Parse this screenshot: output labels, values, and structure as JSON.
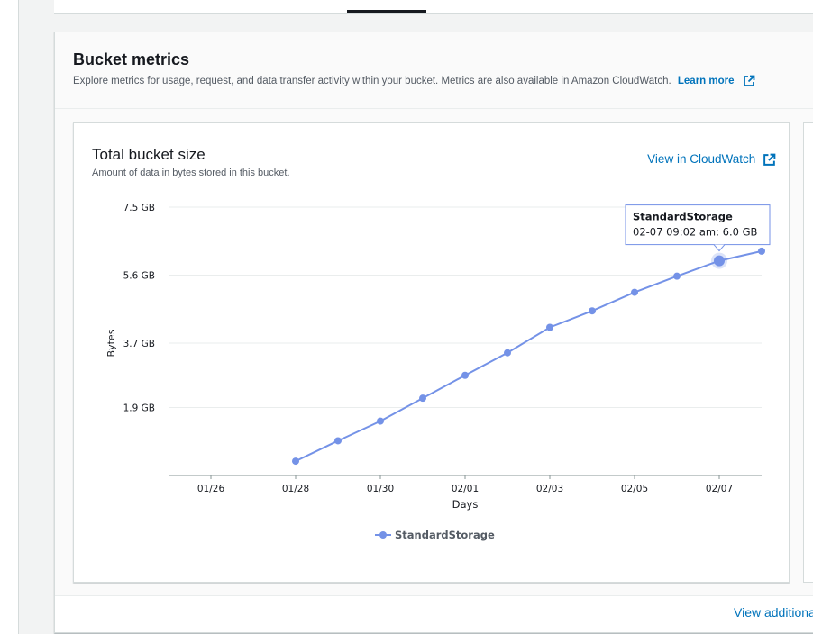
{
  "panel": {
    "title": "Bucket metrics",
    "description": "Explore metrics for usage, request, and data transfer activity within your bucket. Metrics are also available in Amazon CloudWatch.",
    "learn_more": "Learn more"
  },
  "card": {
    "title": "Total bucket size",
    "subtitle": "Amount of data in bytes stored in this bucket.",
    "cloudwatch_link": "View in CloudWatch"
  },
  "footer": {
    "view_additional": "View additional"
  },
  "colors": {
    "accent": "#0073bb",
    "series": "#7492e7"
  },
  "chart_data": {
    "type": "line",
    "title": "Total bucket size",
    "xlabel": "Days",
    "ylabel": "Bytes",
    "x_ticks": [
      "01/26",
      "01/28",
      "01/30",
      "02/01",
      "02/03",
      "02/05",
      "02/07"
    ],
    "y_ticks": [
      {
        "value": 1.9,
        "label": "1.9 GB"
      },
      {
        "value": 3.7,
        "label": "3.7 GB"
      },
      {
        "value": 5.6,
        "label": "5.6 GB"
      },
      {
        "value": 7.5,
        "label": "7.5 GB"
      }
    ],
    "xlim": [
      "01/25",
      "02/08"
    ],
    "ylim": [
      0,
      7.5
    ],
    "x_start": "01/25",
    "grid": true,
    "legend_position": "bottom",
    "series": [
      {
        "name": "StandardStorage",
        "points": [
          {
            "x": "01/28",
            "y": 0.4
          },
          {
            "x": "01/29",
            "y": 0.97
          },
          {
            "x": "01/30",
            "y": 1.52
          },
          {
            "x": "01/31",
            "y": 2.16
          },
          {
            "x": "02/01",
            "y": 2.8
          },
          {
            "x": "02/02",
            "y": 3.43
          },
          {
            "x": "02/03",
            "y": 4.14
          },
          {
            "x": "02/04",
            "y": 4.6
          },
          {
            "x": "02/05",
            "y": 5.12
          },
          {
            "x": "02/06",
            "y": 5.57
          },
          {
            "x": "02/07",
            "y": 6.0
          },
          {
            "x": "02/08",
            "y": 6.27
          }
        ]
      }
    ],
    "tooltip": {
      "series": "StandardStorage",
      "text": "02-07 09:02 am: 6.0 GB",
      "point_index": 10
    }
  }
}
